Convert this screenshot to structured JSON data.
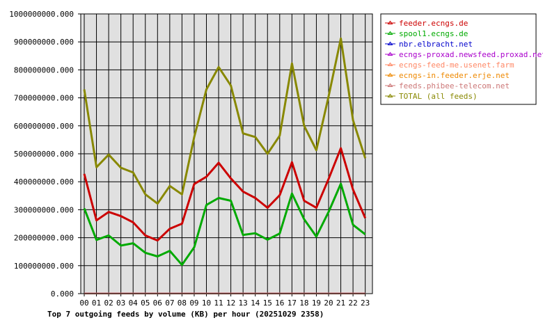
{
  "chart_data": {
    "type": "line",
    "title": "Top 7 outgoing feeds by volume (KB) per hour (20251029 2358)",
    "xlabel": "",
    "ylabel": "",
    "categories": [
      "00",
      "01",
      "02",
      "03",
      "04",
      "05",
      "06",
      "07",
      "08",
      "09",
      "10",
      "11",
      "12",
      "13",
      "14",
      "15",
      "16",
      "17",
      "18",
      "19",
      "20",
      "21",
      "22",
      "23"
    ],
    "ylim": [
      0,
      1000000000
    ],
    "yticks": [
      0,
      100000000,
      200000000,
      300000000,
      400000000,
      500000000,
      600000000,
      700000000,
      800000000,
      900000000,
      1000000000
    ],
    "ytick_labels": [
      "0.000",
      "100000000.000",
      "200000000.000",
      "300000000.000",
      "400000000.000",
      "500000000.000",
      "600000000.000",
      "700000000.000",
      "800000000.000",
      "900000000.000",
      "1000000000.000"
    ],
    "grid": true,
    "legend_position": "right",
    "series": [
      {
        "name": "feeder.ecngs.de",
        "color": "#cc0000",
        "values": [
          428000000,
          262000000,
          292000000,
          277000000,
          255000000,
          208000000,
          190000000,
          232000000,
          250000000,
          392000000,
          418000000,
          468000000,
          412000000,
          365000000,
          342000000,
          307000000,
          352000000,
          470000000,
          332000000,
          307000000,
          410000000,
          520000000,
          372000000,
          270000000
        ]
      },
      {
        "name": "spool1.ecngs.de",
        "color": "#00aa00",
        "values": [
          305000000,
          192000000,
          208000000,
          172000000,
          180000000,
          146000000,
          133000000,
          153000000,
          103000000,
          166000000,
          317000000,
          342000000,
          332000000,
          210000000,
          216000000,
          193000000,
          215000000,
          358000000,
          266000000,
          204000000,
          292000000,
          393000000,
          246000000,
          212000000
        ]
      },
      {
        "name": "nbr.elbracht.net",
        "color": "#0000cc",
        "values": [
          500000,
          500000,
          500000,
          500000,
          500000,
          500000,
          500000,
          500000,
          500000,
          500000,
          500000,
          500000,
          500000,
          500000,
          500000,
          500000,
          500000,
          500000,
          500000,
          500000,
          500000,
          500000,
          500000,
          500000
        ]
      },
      {
        "name": "ecngs-proxad.newsfeed.proxad.net",
        "color": "#aa00cc",
        "values": [
          500000,
          500000,
          500000,
          500000,
          500000,
          500000,
          500000,
          500000,
          500000,
          500000,
          500000,
          500000,
          500000,
          500000,
          500000,
          500000,
          500000,
          500000,
          500000,
          500000,
          500000,
          500000,
          500000,
          500000
        ]
      },
      {
        "name": "ecngs-feed-me.usenet.farm",
        "color": "#ff8866",
        "values": [
          400000,
          400000,
          400000,
          400000,
          400000,
          400000,
          400000,
          400000,
          400000,
          400000,
          400000,
          400000,
          400000,
          400000,
          400000,
          400000,
          400000,
          400000,
          400000,
          400000,
          400000,
          400000,
          400000,
          400000
        ]
      },
      {
        "name": "ecngs-in.feeder.erje.net",
        "color": "#ee8800",
        "values": [
          300000,
          300000,
          300000,
          300000,
          300000,
          300000,
          300000,
          300000,
          300000,
          300000,
          300000,
          300000,
          300000,
          300000,
          300000,
          300000,
          300000,
          300000,
          300000,
          300000,
          300000,
          300000,
          300000,
          300000
        ]
      },
      {
        "name": "feeds.phibee-telecom.net",
        "color": "#cc7777",
        "values": [
          200000,
          200000,
          200000,
          200000,
          200000,
          200000,
          200000,
          200000,
          200000,
          200000,
          200000,
          200000,
          200000,
          200000,
          200000,
          200000,
          200000,
          200000,
          200000,
          200000,
          200000,
          200000,
          200000,
          200000
        ]
      },
      {
        "name": "TOTAL (all feeds)",
        "color": "#888800",
        "values": [
          730000000,
          452000000,
          497000000,
          450000000,
          433000000,
          355000000,
          322000000,
          385000000,
          355000000,
          560000000,
          730000000,
          810000000,
          744000000,
          573000000,
          560000000,
          500000000,
          565000000,
          823000000,
          600000000,
          513000000,
          705000000,
          912000000,
          620000000,
          484000000
        ]
      }
    ]
  }
}
